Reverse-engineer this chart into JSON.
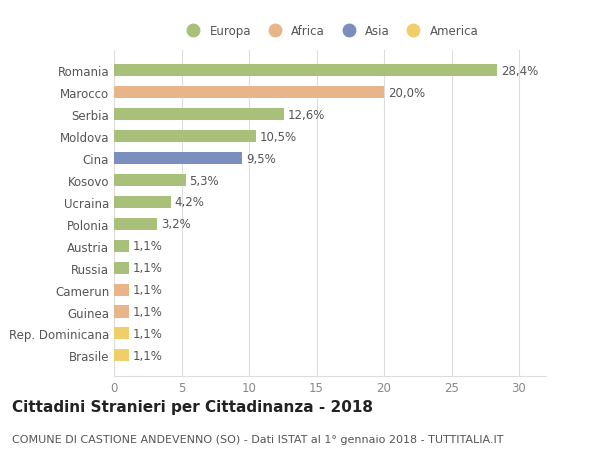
{
  "countries": [
    "Romania",
    "Marocco",
    "Serbia",
    "Moldova",
    "Cina",
    "Kosovo",
    "Ucraina",
    "Polonia",
    "Austria",
    "Russia",
    "Camerun",
    "Guinea",
    "Rep. Dominicana",
    "Brasile"
  ],
  "values": [
    28.4,
    20.0,
    12.6,
    10.5,
    9.5,
    5.3,
    4.2,
    3.2,
    1.1,
    1.1,
    1.1,
    1.1,
    1.1,
    1.1
  ],
  "labels": [
    "28,4%",
    "20,0%",
    "12,6%",
    "10,5%",
    "9,5%",
    "5,3%",
    "4,2%",
    "3,2%",
    "1,1%",
    "1,1%",
    "1,1%",
    "1,1%",
    "1,1%",
    "1,1%"
  ],
  "continents": [
    "Europa",
    "Africa",
    "Europa",
    "Europa",
    "Asia",
    "Europa",
    "Europa",
    "Europa",
    "Europa",
    "Europa",
    "Africa",
    "Africa",
    "America",
    "America"
  ],
  "colors": {
    "Europa": "#a8c07a",
    "Africa": "#e8b48a",
    "Asia": "#7b8fbf",
    "America": "#f0ce6a"
  },
  "legend_order": [
    "Europa",
    "Africa",
    "Asia",
    "America"
  ],
  "title": "Cittadini Stranieri per Cittadinanza - 2018",
  "subtitle": "COMUNE DI CASTIONE ANDEVENNO (SO) - Dati ISTAT al 1° gennaio 2018 - TUTTITALIA.IT",
  "xlim": [
    0,
    32
  ],
  "xticks": [
    0,
    5,
    10,
    15,
    20,
    25,
    30
  ],
  "background_color": "#ffffff",
  "grid_color": "#dddddd",
  "bar_height": 0.55,
  "label_fontsize": 8.5,
  "tick_fontsize": 8.5,
  "title_fontsize": 11,
  "subtitle_fontsize": 8
}
